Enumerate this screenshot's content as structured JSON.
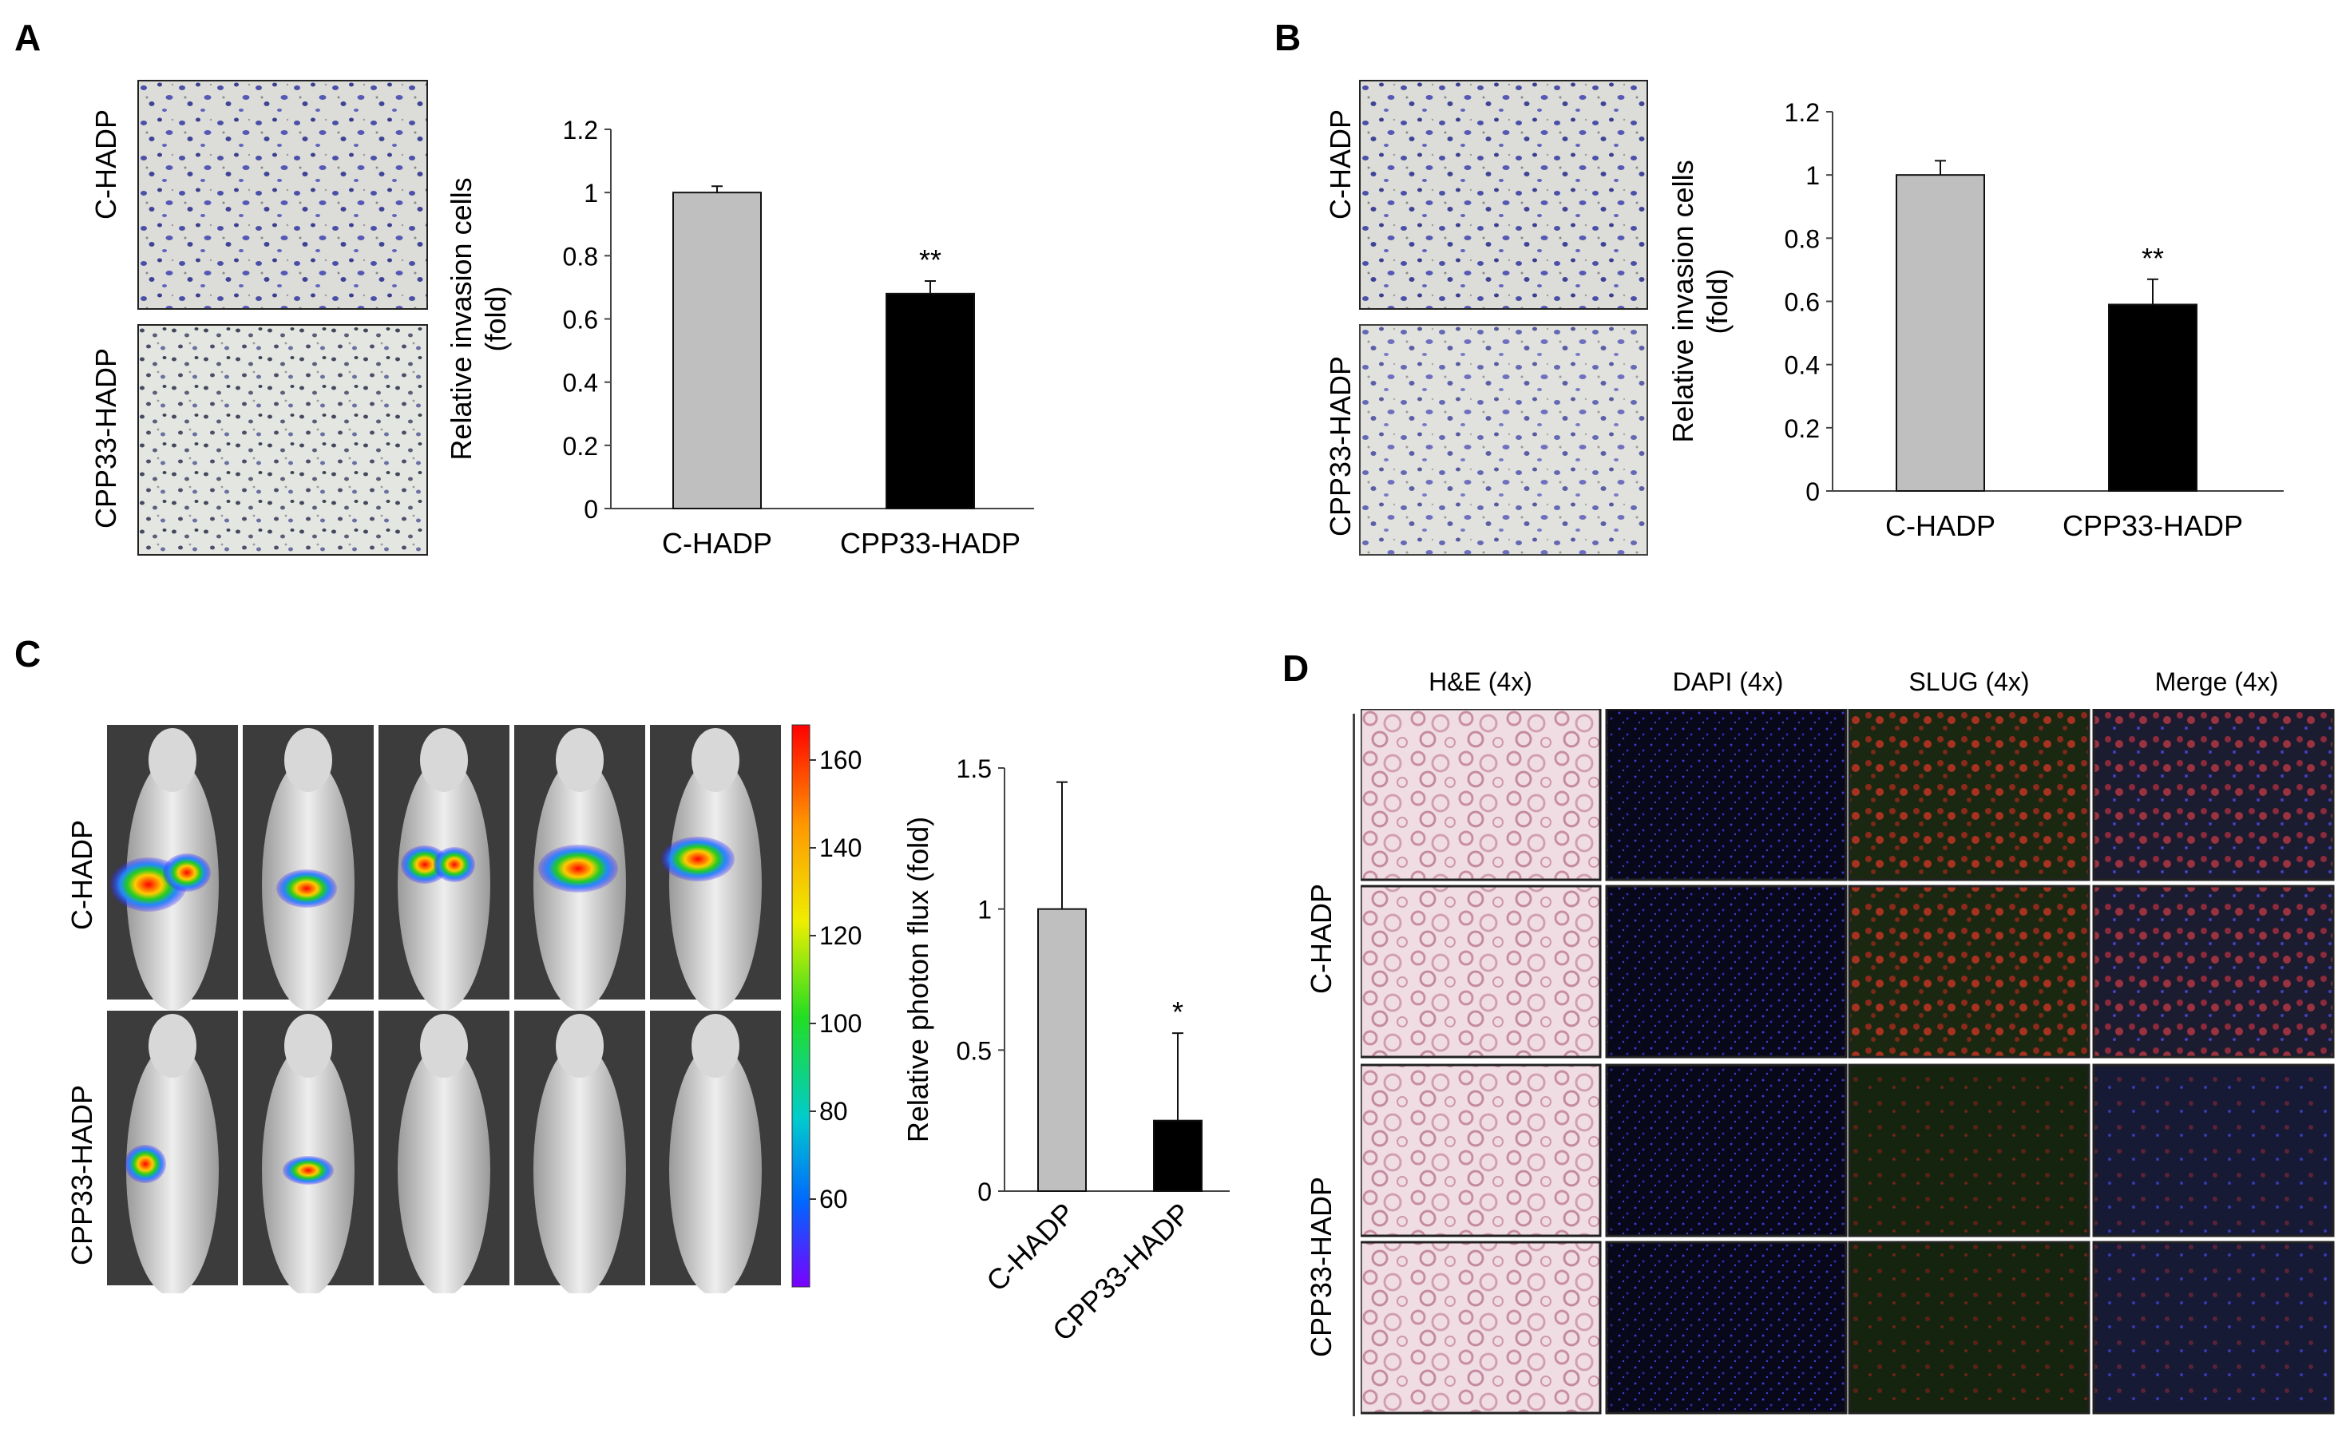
{
  "panels": {
    "a": {
      "letter": "A",
      "row_labels": [
        "C-HADP",
        "CPP33-HADP"
      ]
    },
    "b": {
      "letter": "B",
      "row_labels": [
        "C-HADP",
        "CPP33-HADP"
      ]
    },
    "c": {
      "letter": "C",
      "row_labels": [
        "C-HADP",
        "CPP33-HADP"
      ]
    },
    "d": {
      "letter": "D",
      "row_labels": [
        "C-HADP",
        "CPP33-HADP"
      ],
      "column_headers": [
        "H&E (4x)",
        "DAPI (4x)",
        "SLUG (4x)",
        "Merge (4x)"
      ]
    }
  },
  "colorbar": {
    "ticks": [
      "160",
      "140",
      "120",
      "100",
      "80",
      "60"
    ]
  },
  "colors": {
    "control_bar": "#bfbfbf",
    "treated_bar": "#000000"
  },
  "chart_data": [
    {
      "panel": "A",
      "type": "bar",
      "categories": [
        "C-HADP",
        "CPP33-HADP"
      ],
      "values": [
        1.0,
        0.68
      ],
      "errors": [
        0.02,
        0.04
      ],
      "annotations": [
        "",
        "**"
      ],
      "title": "",
      "xlabel": "",
      "ylabel": "Relative invasion cells (fold)",
      "ylim": [
        0,
        1.2
      ],
      "yticks": [
        "0",
        "0.2",
        "0.4",
        "0.6",
        "0.8",
        "1",
        "1.2"
      ]
    },
    {
      "panel": "B",
      "type": "bar",
      "categories": [
        "C-HADP",
        "CPP33-HADP"
      ],
      "values": [
        1.0,
        0.59
      ],
      "errors": [
        0.045,
        0.08
      ],
      "annotations": [
        "",
        "**"
      ],
      "title": "",
      "xlabel": "",
      "ylabel": "Relative invasion cells (fold)",
      "ylim": [
        0,
        1.2
      ],
      "yticks": [
        "0",
        "0.2",
        "0.4",
        "0.6",
        "0.8",
        "1",
        "1.2"
      ]
    },
    {
      "panel": "C",
      "type": "bar",
      "categories": [
        "C-HADP",
        "CPP33-HADP"
      ],
      "values": [
        1.0,
        0.25
      ],
      "errors": [
        0.45,
        0.31
      ],
      "annotations": [
        "",
        "*"
      ],
      "title": "",
      "xlabel": "",
      "ylabel": "Relative photon flux (fold)",
      "ylim": [
        0,
        1.5
      ],
      "yticks": [
        "0",
        "0.5",
        "1",
        "1.5"
      ]
    }
  ]
}
